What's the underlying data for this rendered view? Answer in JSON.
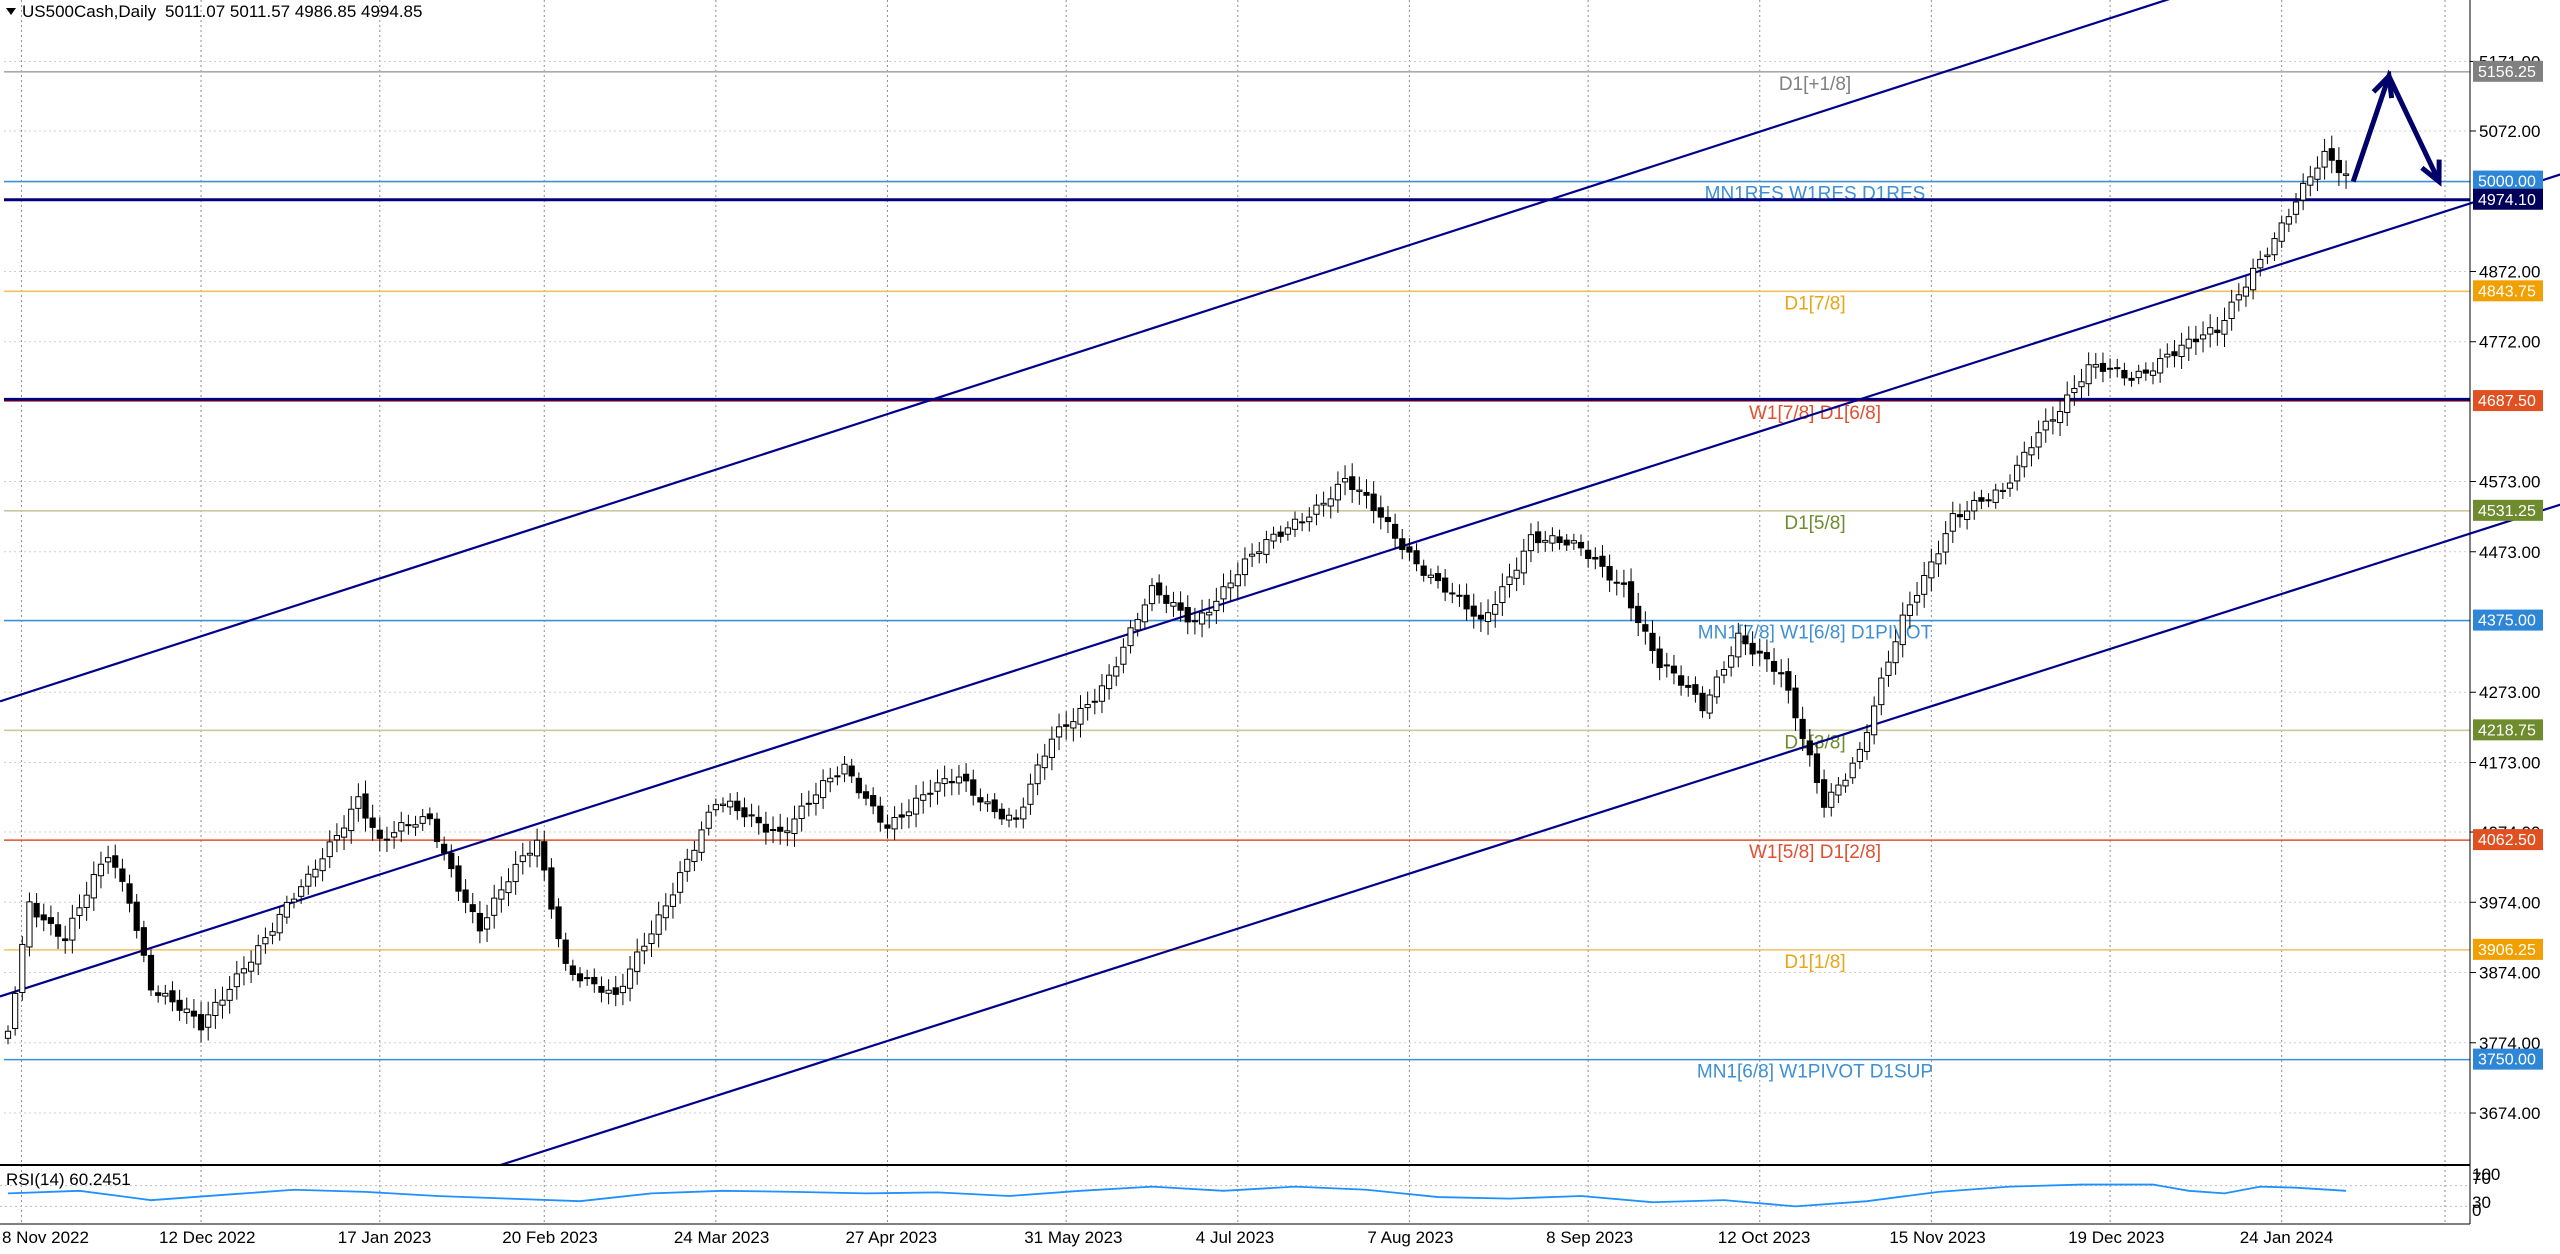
{
  "header": {
    "symbol": "US500Cash,Daily",
    "ohlc": "5011.07 5011.57 4986.85 4994.85"
  },
  "chart_data": {
    "type": "candlestick",
    "ylim": [
      3600,
      5230
    ],
    "y_ticks": [
      5171.0,
      5072.0,
      4872.0,
      4772.0,
      4573.0,
      4473.0,
      4273.0,
      4173.0,
      4074.0,
      3974.0,
      3874.0,
      3774.0,
      3674.0
    ],
    "x_labels": [
      "8 Nov 2022",
      "12 Dec 2022",
      "17 Jan 2023",
      "20 Feb 2023",
      "24 Mar 2023",
      "27 Apr 2023",
      "31 May 2023",
      "4 Jul 2023",
      "7 Aug 2023",
      "8 Sep 2023",
      "12 Oct 2023",
      "15 Nov 2023",
      "19 Dec 2023",
      "24 Jan 2024"
    ],
    "grid": true,
    "keypoints": [
      [
        0,
        3790
      ],
      [
        3,
        3980
      ],
      [
        8,
        3920
      ],
      [
        14,
        4040
      ],
      [
        17,
        3985
      ],
      [
        20,
        3860
      ],
      [
        27,
        3790
      ],
      [
        33,
        3890
      ],
      [
        42,
        4000
      ],
      [
        49,
        4130
      ],
      [
        52,
        4060
      ],
      [
        59,
        4090
      ],
      [
        66,
        3940
      ],
      [
        74,
        4060
      ],
      [
        78,
        3890
      ],
      [
        85,
        3830
      ],
      [
        94,
        4020
      ],
      [
        99,
        4110
      ],
      [
        108,
        4080
      ],
      [
        117,
        4160
      ],
      [
        123,
        4090
      ],
      [
        133,
        4150
      ],
      [
        141,
        4090
      ],
      [
        146,
        4200
      ],
      [
        154,
        4300
      ],
      [
        160,
        4410
      ],
      [
        166,
        4380
      ],
      [
        172,
        4440
      ],
      [
        180,
        4520
      ],
      [
        187,
        4570
      ],
      [
        193,
        4510
      ],
      [
        200,
        4430
      ],
      [
        206,
        4365
      ],
      [
        213,
        4500
      ],
      [
        220,
        4470
      ],
      [
        226,
        4430
      ],
      [
        231,
        4310
      ],
      [
        237,
        4250
      ],
      [
        242,
        4360
      ],
      [
        248,
        4290
      ],
      [
        254,
        4120
      ],
      [
        259,
        4190
      ],
      [
        265,
        4370
      ],
      [
        272,
        4530
      ],
      [
        279,
        4550
      ],
      [
        284,
        4650
      ],
      [
        291,
        4730
      ],
      [
        297,
        4720
      ],
      [
        302,
        4760
      ],
      [
        309,
        4780
      ],
      [
        314,
        4880
      ],
      [
        320,
        4970
      ],
      [
        324,
        5030
      ],
      [
        327,
        5010
      ]
    ],
    "levels": [
      {
        "price": 5156.25,
        "label": "D1[+1/8]",
        "color": "#aaaaaa",
        "label_color": "#808080",
        "tag": "5156.25",
        "tag_bg": "#808080"
      },
      {
        "price": 5000.0,
        "label": "MN1RES W1RES D1RES",
        "color": "#3d8fd6",
        "label_color": "#3d8fd6",
        "tag": "5000.00",
        "tag_bg": "#2e86d6"
      },
      {
        "price": 4974.1,
        "label": "",
        "color": "#00007f",
        "label_color": "#00007f",
        "tag": "4974.10",
        "tag_bg": "#00005a",
        "thick": true
      },
      {
        "price": 4843.75,
        "label": "D1[7/8]",
        "color": "#f0c060",
        "label_color": "#e8a515",
        "tag": "4843.75",
        "tag_bg": "#f0a000"
      },
      {
        "price": 4687.5,
        "label": "W1[7/8] D1[6/8]",
        "color": "#e05030",
        "label_color": "#e05030",
        "tag": "4687.50",
        "tag_bg": "#e05020"
      },
      {
        "price": 4531.25,
        "label": "D1[5/8]",
        "color": "#c9c8a0",
        "label_color": "#6e8b2e",
        "tag": "4531.25",
        "tag_bg": "#6e8b2e"
      },
      {
        "price": 4375.0,
        "label": "MN1[7/8] W1[6/8] D1PIVOT",
        "color": "#3d8fd6",
        "label_color": "#3d8fd6",
        "tag": "4375.00",
        "tag_bg": "#2e86d6"
      },
      {
        "price": 4218.75,
        "label": "D1[3/8]",
        "color": "#c9c8a0",
        "label_color": "#6e8b2e",
        "tag": "4218.75",
        "tag_bg": "#6e8b2e"
      },
      {
        "price": 4062.5,
        "label": "W1[5/8] D1[2/8]",
        "color": "#e05030",
        "label_color": "#e05030",
        "tag": "4062.50",
        "tag_bg": "#e05020"
      },
      {
        "price": 3906.25,
        "label": "D1[1/8]",
        "color": "#f0c060",
        "label_color": "#e8a515",
        "tag": "3906.25",
        "tag_bg": "#f0a000"
      },
      {
        "price": 3750.0,
        "label": "MN1[6/8] W1PIVOT D1SUP",
        "color": "#3d8fd6",
        "label_color": "#3d8fd6",
        "tag": "3750.00",
        "tag_bg": "#2e86d6"
      }
    ],
    "extra_level": {
      "price": 4690.0,
      "color": "#00007f"
    },
    "channel_lines": [
      {
        "from": [
          0,
          4260
        ],
        "to": [
          360,
          5450
        ]
      },
      {
        "from": [
          0,
          3840
        ],
        "to": [
          360,
          5020
        ]
      },
      {
        "from": [
          70,
          3600
        ],
        "to": [
          360,
          4550
        ]
      }
    ],
    "forecast_arrow": [
      [
        328,
        5000
      ],
      [
        333,
        5150
      ],
      [
        340,
        5000
      ]
    ],
    "rsi": {
      "label": "RSI(14) 60.2451",
      "levels": [
        "100",
        "70",
        "30",
        "0"
      ],
      "ylim": [
        0,
        100
      ],
      "points": [
        [
          0,
          55
        ],
        [
          10,
          60
        ],
        [
          20,
          42
        ],
        [
          30,
          52
        ],
        [
          40,
          62
        ],
        [
          50,
          58
        ],
        [
          60,
          50
        ],
        [
          70,
          45
        ],
        [
          80,
          40
        ],
        [
          90,
          55
        ],
        [
          100,
          60
        ],
        [
          110,
          58
        ],
        [
          120,
          55
        ],
        [
          130,
          57
        ],
        [
          140,
          50
        ],
        [
          150,
          60
        ],
        [
          160,
          68
        ],
        [
          170,
          60
        ],
        [
          180,
          68
        ],
        [
          190,
          62
        ],
        [
          200,
          48
        ],
        [
          210,
          45
        ],
        [
          220,
          50
        ],
        [
          230,
          38
        ],
        [
          240,
          42
        ],
        [
          250,
          30
        ],
        [
          260,
          40
        ],
        [
          270,
          58
        ],
        [
          280,
          68
        ],
        [
          290,
          72
        ],
        [
          300,
          72
        ],
        [
          305,
          60
        ],
        [
          310,
          55
        ],
        [
          315,
          68
        ],
        [
          320,
          66
        ],
        [
          327,
          60
        ]
      ]
    }
  }
}
